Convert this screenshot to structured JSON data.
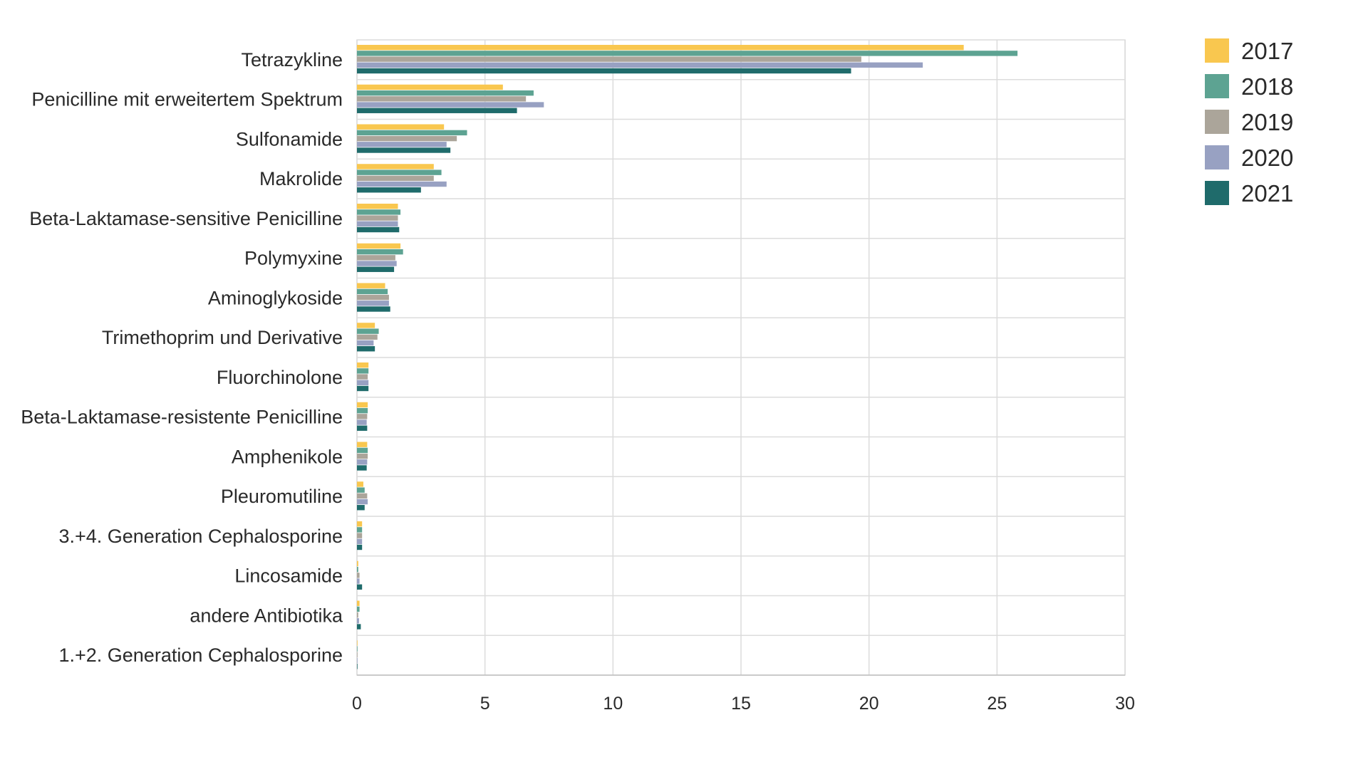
{
  "chart_data": {
    "type": "bar",
    "orientation": "horizontal",
    "categories": [
      "Tetrazykline",
      "Penicilline mit erweitertem Spektrum",
      "Sulfonamide",
      "Makrolide",
      "Beta-Laktamase-sensitive Penicilline",
      "Polymyxine",
      "Aminoglykoside",
      "Trimethoprim und Derivative",
      "Fluorchinolone",
      "Beta-Laktamase-resistente Penicilline",
      "Amphenikole",
      "Pleuromutiline",
      "3.+4. Generation Cephalosporine",
      "Lincosamide",
      "andere Antibiotika",
      "1.+2. Generation Cephalosporine"
    ],
    "series": [
      {
        "name": "2017",
        "color": "#f9c74f",
        "values": [
          23.7,
          5.7,
          3.4,
          3.0,
          1.6,
          1.7,
          1.1,
          0.7,
          0.45,
          0.42,
          0.4,
          0.25,
          0.2,
          0.05,
          0.1,
          0.02
        ]
      },
      {
        "name": "2018",
        "color": "#5da392",
        "values": [
          25.8,
          6.9,
          4.3,
          3.3,
          1.7,
          1.8,
          1.2,
          0.85,
          0.45,
          0.42,
          0.42,
          0.3,
          0.2,
          0.05,
          0.1,
          0.02
        ]
      },
      {
        "name": "2019",
        "color": "#aba59a",
        "values": [
          19.7,
          6.6,
          3.9,
          3.0,
          1.6,
          1.5,
          1.25,
          0.8,
          0.42,
          0.4,
          0.42,
          0.4,
          0.2,
          0.1,
          0.05,
          0.02
        ]
      },
      {
        "name": "2020",
        "color": "#98a1c2",
        "values": [
          22.1,
          7.3,
          3.5,
          3.5,
          1.6,
          1.55,
          1.25,
          0.65,
          0.45,
          0.38,
          0.4,
          0.42,
          0.2,
          0.1,
          0.08,
          0.02
        ]
      },
      {
        "name": "2021",
        "color": "#1f6b6b",
        "values": [
          19.3,
          6.25,
          3.65,
          2.5,
          1.65,
          1.45,
          1.3,
          0.7,
          0.45,
          0.4,
          0.38,
          0.3,
          0.2,
          0.2,
          0.15,
          0.02
        ]
      }
    ],
    "x_ticks": [
      "0",
      "5",
      "10",
      "15",
      "20",
      "25",
      "30"
    ],
    "xlim": [
      0,
      30
    ],
    "xlabel": "",
    "ylabel": "",
    "grid": true,
    "legend_position": "top-right"
  }
}
